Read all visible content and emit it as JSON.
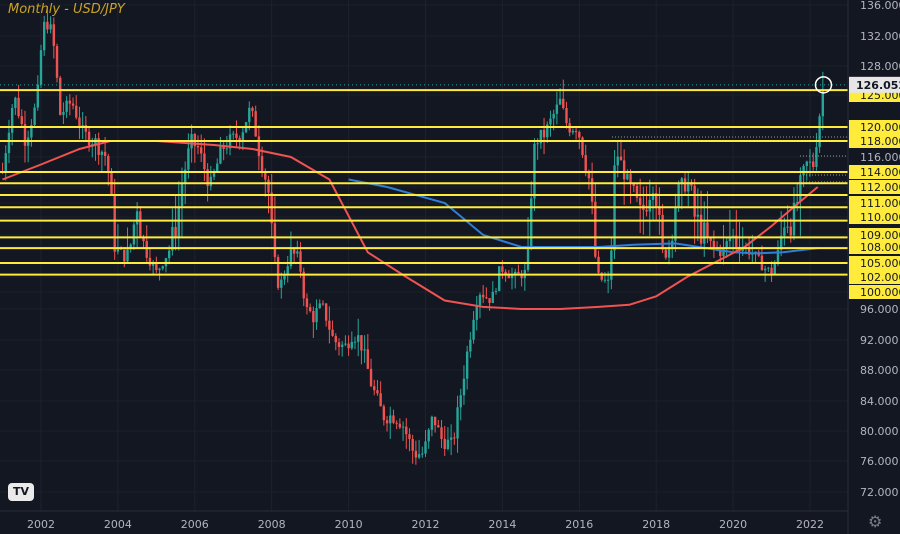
{
  "header": {
    "title": "Monthly - USD/JPY"
  },
  "icons": {
    "logo": "tradingview-logo",
    "settings": "gear-icon"
  },
  "logo_text": "TV",
  "chart_data": {
    "type": "candlestick",
    "title": "Monthly - USD/JPY",
    "xlabel": "",
    "ylabel": "",
    "x_ticks": [
      "2002",
      "2004",
      "2006",
      "2008",
      "2010",
      "2012",
      "2014",
      "2016",
      "2018",
      "2020",
      "2022"
    ],
    "y_ticks": [
      "136.000",
      "132.000",
      "128.000",
      "125.000",
      "120.000",
      "118.000",
      "116.000",
      "114.000",
      "112.000",
      "111.000",
      "110.000",
      "109.000",
      "108.000",
      "105.000",
      "102.000",
      "100.000",
      "96.000",
      "92.000",
      "88.000",
      "84.000",
      "80.000",
      "76.000",
      "72.000"
    ],
    "current_price": "126.052",
    "horizontal_levels": [
      125.5,
      120.0,
      118.0,
      114.0,
      112.5,
      111.5,
      110.7,
      109.8,
      108.8,
      107.8,
      105.0,
      102.5
    ],
    "colors": {
      "background": "#131722",
      "up_candle": "#26a69a",
      "down_candle": "#ef5350",
      "levels": "#ffeb3b",
      "ma_red": "#f05350",
      "ma_blue": "#2f7fd6",
      "price_label_bg": "#e6e6e6"
    },
    "price_path": [
      [
        2001.0,
        114
      ],
      [
        2001.3,
        125
      ],
      [
        2001.6,
        118
      ],
      [
        2001.9,
        124
      ],
      [
        2002.05,
        133
      ],
      [
        2002.2,
        134
      ],
      [
        2002.35,
        130
      ],
      [
        2002.5,
        122
      ],
      [
        2002.8,
        124
      ],
      [
        2003.1,
        119
      ],
      [
        2003.4,
        118
      ],
      [
        2003.7,
        116
      ],
      [
        2003.9,
        108
      ],
      [
        2004.2,
        106
      ],
      [
        2004.5,
        111
      ],
      [
        2004.8,
        106
      ],
      [
        2005.0,
        103
      ],
      [
        2005.3,
        107
      ],
      [
        2005.6,
        111
      ],
      [
        2005.9,
        118
      ],
      [
        2006.1,
        117
      ],
      [
        2006.4,
        112
      ],
      [
        2006.7,
        117
      ],
      [
        2006.9,
        118
      ],
      [
        2007.2,
        119
      ],
      [
        2007.45,
        123
      ],
      [
        2007.7,
        116
      ],
      [
        2007.95,
        111
      ],
      [
        2008.2,
        100
      ],
      [
        2008.5,
        107
      ],
      [
        2008.7,
        106
      ],
      [
        2008.9,
        96
      ],
      [
        2009.1,
        95
      ],
      [
        2009.3,
        97
      ],
      [
        2009.6,
        92
      ],
      [
        2009.9,
        91
      ],
      [
        2010.1,
        93
      ],
      [
        2010.3,
        92
      ],
      [
        2010.6,
        86
      ],
      [
        2010.9,
        82
      ],
      [
        2011.2,
        82
      ],
      [
        2011.4,
        81
      ],
      [
        2011.7,
        77
      ],
      [
        2011.95,
        77
      ],
      [
        2012.2,
        82
      ],
      [
        2012.4,
        79
      ],
      [
        2012.7,
        78
      ],
      [
        2012.95,
        86
      ],
      [
        2013.2,
        94
      ],
      [
        2013.4,
        100
      ],
      [
        2013.7,
        98
      ],
      [
        2013.95,
        104
      ],
      [
        2014.3,
        102
      ],
      [
        2014.6,
        103
      ],
      [
        2014.85,
        118
      ],
      [
        2015.1,
        119
      ],
      [
        2015.5,
        124
      ],
      [
        2015.7,
        120
      ],
      [
        2015.95,
        120
      ],
      [
        2016.3,
        112
      ],
      [
        2016.5,
        102
      ],
      [
        2016.75,
        101
      ],
      [
        2016.95,
        117
      ],
      [
        2017.3,
        112
      ],
      [
        2017.6,
        110
      ],
      [
        2017.95,
        113
      ],
      [
        2018.2,
        106
      ],
      [
        2018.5,
        111
      ],
      [
        2018.8,
        113
      ],
      [
        2019.0,
        110
      ],
      [
        2019.4,
        108
      ],
      [
        2019.7,
        107
      ],
      [
        2019.95,
        109
      ],
      [
        2020.2,
        108
      ],
      [
        2020.5,
        107
      ],
      [
        2020.8,
        104
      ],
      [
        2021.0,
        103
      ],
      [
        2021.3,
        110
      ],
      [
        2021.6,
        110
      ],
      [
        2021.9,
        115
      ],
      [
        2022.1,
        115
      ],
      [
        2022.25,
        122
      ],
      [
        2022.35,
        126.05
      ]
    ],
    "ma_red": [
      [
        2001.0,
        113
      ],
      [
        2002.0,
        115
      ],
      [
        2003.0,
        117
      ],
      [
        2003.8,
        118
      ],
      [
        2005.0,
        118
      ],
      [
        2006.5,
        117.5
      ],
      [
        2007.5,
        117
      ],
      [
        2008.5,
        116
      ],
      [
        2009.5,
        113
      ],
      [
        2010.5,
        107
      ],
      [
        2011.5,
        102
      ],
      [
        2012.5,
        98
      ],
      [
        2013.5,
        96.5
      ],
      [
        2014.5,
        96
      ],
      [
        2015.5,
        96
      ],
      [
        2016.5,
        96.5
      ],
      [
        2017.3,
        97
      ],
      [
        2018.0,
        99
      ],
      [
        2018.8,
        102
      ],
      [
        2019.5,
        105
      ],
      [
        2020.3,
        108
      ],
      [
        2021.0,
        109.5
      ],
      [
        2021.7,
        111
      ],
      [
        2022.2,
        112
      ]
    ],
    "ma_blue": [
      [
        2010.0,
        113
      ],
      [
        2011.0,
        112
      ],
      [
        2012.5,
        111
      ],
      [
        2013.5,
        109
      ],
      [
        2014.5,
        108
      ],
      [
        2015.5,
        108
      ],
      [
        2016.5,
        108
      ],
      [
        2017.5,
        108.2
      ],
      [
        2018.5,
        108.3
      ],
      [
        2019.3,
        107.8
      ],
      [
        2020.0,
        107
      ],
      [
        2020.6,
        106.8
      ],
      [
        2021.3,
        107
      ],
      [
        2022.2,
        107.8
      ]
    ]
  }
}
